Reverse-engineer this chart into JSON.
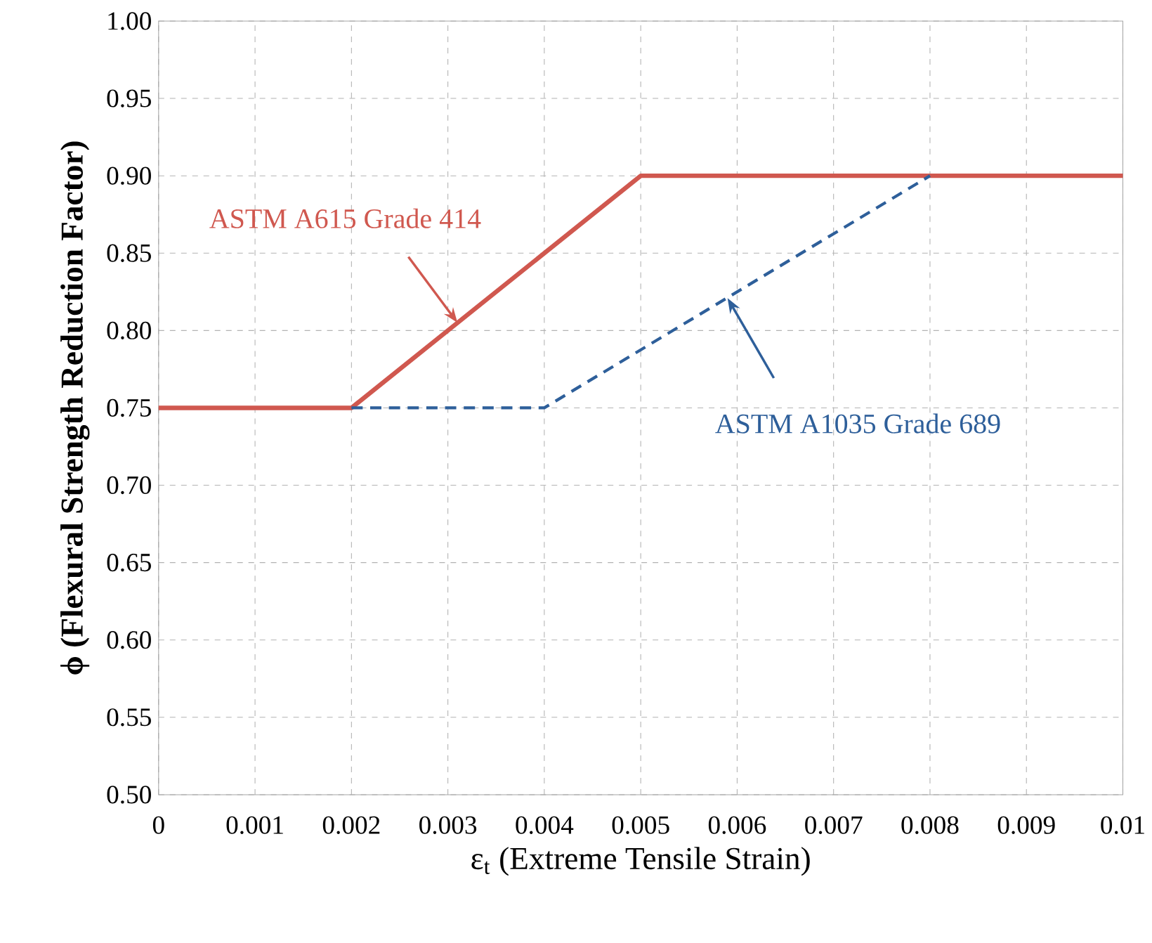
{
  "chart_data": {
    "type": "line",
    "xlabel": "ε$_{t}$ (Extreme Tensile Strain)",
    "ylabel": "ϕ (Flexural Strength Reduction Factor)",
    "series": [
      {
        "x": [
          0,
          0.002,
          0.005,
          0.01
        ],
        "values": [
          0.75,
          0.75,
          0.9,
          0.9
        ],
        "color": "#d0584f",
        "line_style": "solid"
      },
      {
        "x": [
          0.002,
          0.004,
          0.008
        ],
        "values": [
          0.75,
          0.75,
          0.9
        ],
        "color": "#2e5f9a",
        "line_style": "dashed"
      }
    ],
    "annotations": [
      {
        "text": "ASTM A615 Grade 414",
        "x": 0.0031,
        "y": 0.805
      },
      {
        "text": "ASTM A1035 Grade 689",
        "x": 0.0059,
        "y": 0.821
      }
    ],
    "xlim": [
      0,
      0.01
    ],
    "xticks": [
      0,
      0.001,
      0.002,
      0.003,
      0.004,
      0.005,
      0.006,
      0.007,
      0.008,
      0.009,
      0.01
    ],
    "ylim": [
      0.5,
      1.0
    ],
    "yticks": [
      {
        "value": 0.5,
        "label": "0.50"
      },
      {
        "value": 0.55,
        "label": "0.55"
      },
      {
        "value": 0.6,
        "label": "0.60"
      },
      {
        "value": 0.65,
        "label": "0.65"
      },
      {
        "value": 0.7,
        "label": "0.70"
      },
      {
        "value": 0.75,
        "label": "0.75"
      },
      {
        "value": 0.8,
        "label": "0.80"
      },
      {
        "value": 0.85,
        "label": "0.85"
      },
      {
        "value": 0.9,
        "label": "0.90"
      },
      {
        "value": 0.95,
        "label": "0.95"
      },
      {
        "value": 1.0,
        "label": "1.00"
      }
    ],
    "grid": true
  }
}
